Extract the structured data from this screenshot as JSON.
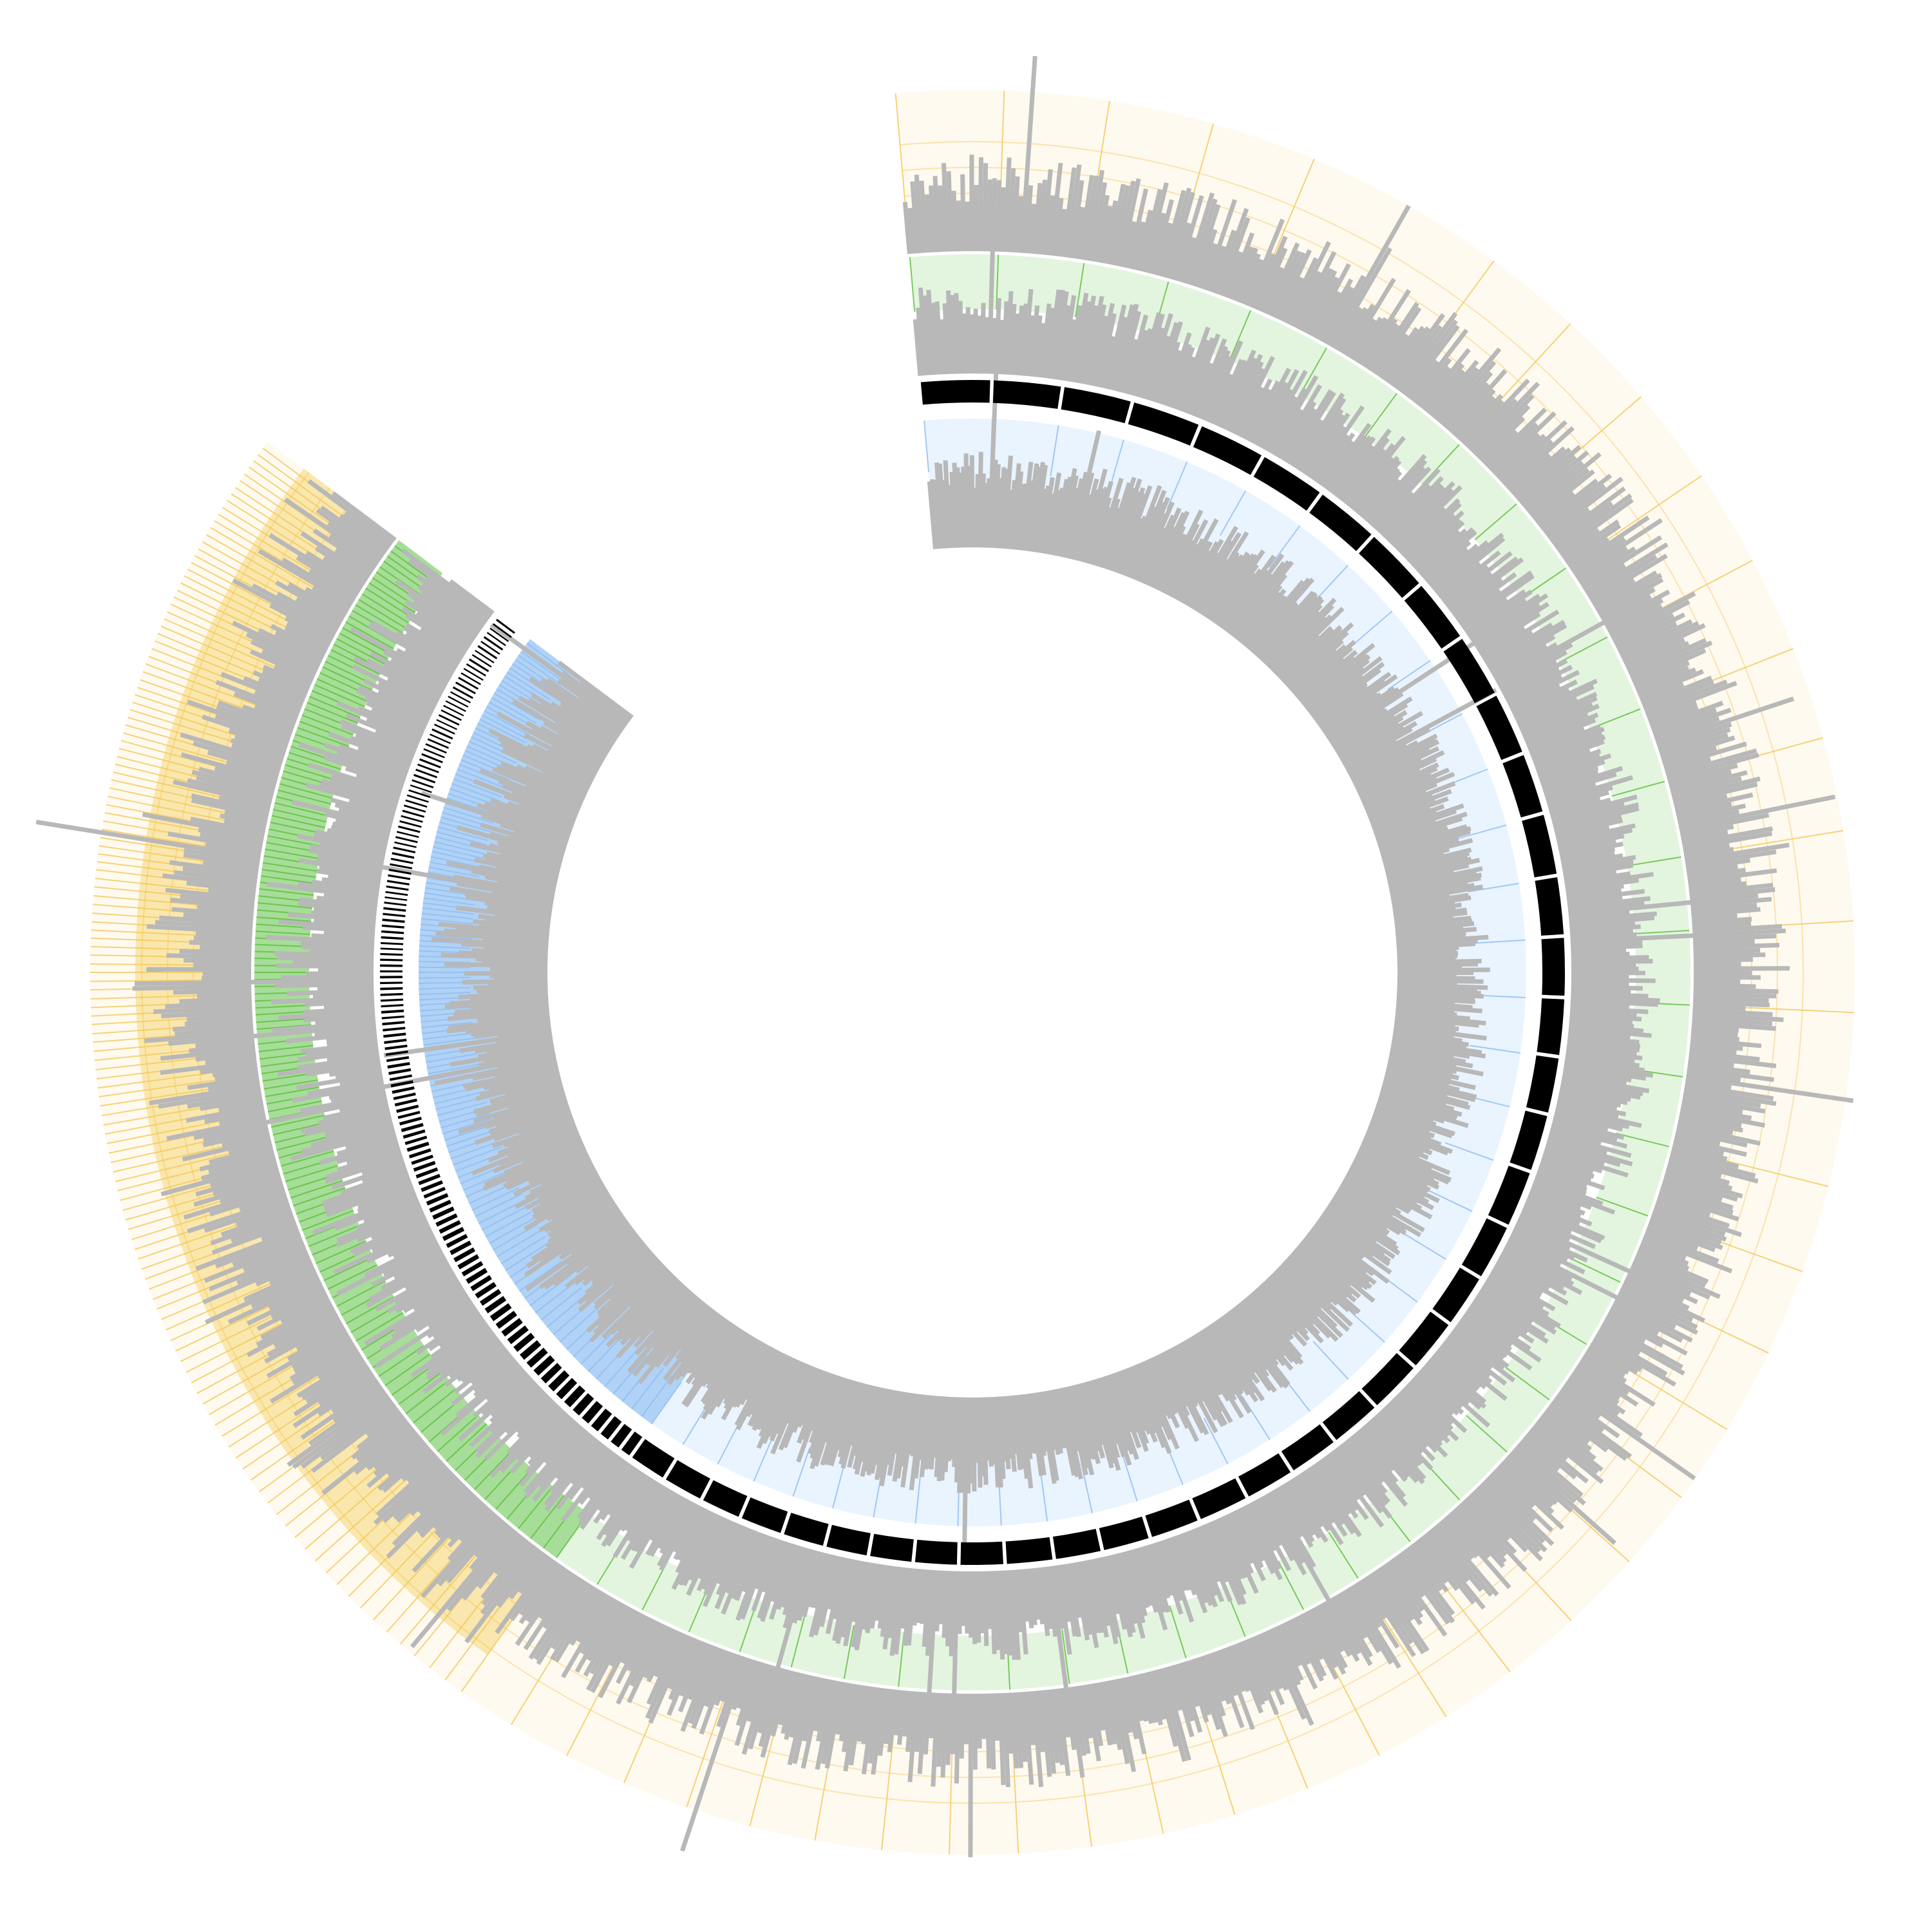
{
  "chart_data": {
    "type": "circos",
    "title": "",
    "scaffold_count": 180,
    "large_scaffold_count": 40,
    "colors": {
      "background": "#ffffff",
      "scaffold_band": "#000000",
      "histogram_bar": "#b8b8b8",
      "inner_track_fill": "#eaf4ff",
      "inner_track_line": "#8fbdf0",
      "inner_track_strong": "#6aa8ec",
      "middle_track_fill": "#e3f5df",
      "middle_track_line": "#5cbf3c",
      "middle_track_strong": "#4cba2c",
      "outer_track_fill": "#fffaf0",
      "outer_track_line": "#f3c85a",
      "outer_track_strong": "#f2c230"
    },
    "tracks": [
      {
        "name": "",
        "color": "#000000"
      },
      {
        "name": "",
        "color": "#8fbdf0"
      },
      {
        "name": "",
        "color": "#5cbf3c"
      },
      {
        "name": "",
        "color": "#f3c85a"
      }
    ],
    "legend": "none",
    "grid": true
  }
}
